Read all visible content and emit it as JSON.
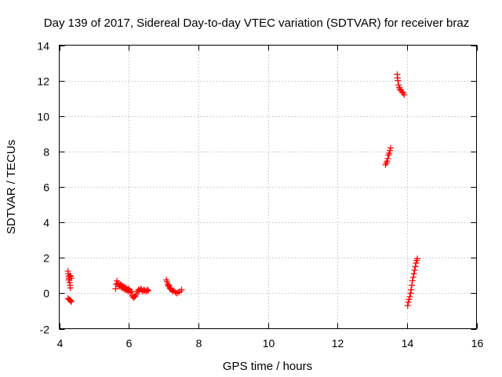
{
  "chart_data": {
    "type": "scatter",
    "title": "Day 139 of 2017, Sidereal Day-to-day VTEC variation (SDTVAR) for receiver braz",
    "xlabel": "GPS time / hours",
    "ylabel": "SDTVAR / TECUs",
    "xlim": [
      4,
      16
    ],
    "ylim": [
      -2,
      14
    ],
    "xticks": [
      4,
      6,
      8,
      10,
      12,
      14,
      16
    ],
    "yticks": [
      -2,
      0,
      2,
      4,
      6,
      8,
      10,
      12,
      14
    ],
    "xtick_labels": [
      "4",
      "6",
      "8",
      "10",
      "12",
      "14",
      "16"
    ],
    "ytick_labels": [
      "-2",
      "0",
      "2",
      "4",
      "6",
      "8",
      "10",
      "12",
      "14"
    ],
    "grid": true,
    "marker": "+",
    "color": "#ff0000",
    "series": [
      {
        "name": "SDTVAR",
        "points": [
          [
            4.25,
            1.25
          ],
          [
            4.26,
            1.1
          ],
          [
            4.27,
            0.95
          ],
          [
            4.28,
            0.85
          ],
          [
            4.29,
            0.75
          ],
          [
            4.3,
            0.6
          ],
          [
            4.31,
            0.45
          ],
          [
            4.32,
            0.3
          ],
          [
            4.27,
            0.75
          ],
          [
            4.29,
            0.95
          ],
          [
            4.31,
            1.0
          ],
          [
            4.33,
            0.95
          ],
          [
            4.35,
            0.85
          ],
          [
            4.25,
            -0.3
          ],
          [
            4.28,
            -0.35
          ],
          [
            4.31,
            -0.38
          ],
          [
            4.33,
            -0.42
          ],
          [
            4.35,
            -0.48
          ],
          [
            5.62,
            0.25
          ],
          [
            5.64,
            0.5
          ],
          [
            5.66,
            0.7
          ],
          [
            5.68,
            0.55
          ],
          [
            5.7,
            0.4
          ],
          [
            5.72,
            0.55
          ],
          [
            5.74,
            0.4
          ],
          [
            5.76,
            0.5
          ],
          [
            5.78,
            0.35
          ],
          [
            5.8,
            0.45
          ],
          [
            5.82,
            0.3
          ],
          [
            5.84,
            0.4
          ],
          [
            5.86,
            0.25
          ],
          [
            5.88,
            0.35
          ],
          [
            5.9,
            0.2
          ],
          [
            5.92,
            0.3
          ],
          [
            5.95,
            0.15
          ],
          [
            5.98,
            0.25
          ],
          [
            6.0,
            0.1
          ],
          [
            6.02,
            0.2
          ],
          [
            6.05,
            0.05
          ],
          [
            6.08,
            0.1
          ],
          [
            6.1,
            -0.15
          ],
          [
            6.13,
            -0.25
          ],
          [
            6.16,
            -0.2
          ],
          [
            6.19,
            -0.15
          ],
          [
            6.22,
            -0.05
          ],
          [
            6.25,
            0.1
          ],
          [
            6.28,
            0.2
          ],
          [
            6.31,
            0.15
          ],
          [
            6.34,
            0.25
          ],
          [
            6.37,
            0.2
          ],
          [
            6.4,
            0.1
          ],
          [
            6.43,
            0.2
          ],
          [
            6.46,
            0.15
          ],
          [
            6.5,
            0.1
          ],
          [
            6.53,
            0.2
          ],
          [
            6.56,
            0.15
          ],
          [
            7.08,
            0.75
          ],
          [
            7.1,
            0.65
          ],
          [
            7.12,
            0.5
          ],
          [
            7.14,
            0.4
          ],
          [
            7.16,
            0.45
          ],
          [
            7.18,
            0.3
          ],
          [
            7.2,
            0.25
          ],
          [
            7.23,
            0.2
          ],
          [
            7.26,
            0.1
          ],
          [
            7.3,
            0.15
          ],
          [
            7.34,
            0.05
          ],
          [
            7.38,
            0.0
          ],
          [
            7.42,
            0.05
          ],
          [
            7.47,
            0.1
          ],
          [
            7.52,
            0.2
          ],
          [
            13.38,
            7.25
          ],
          [
            13.41,
            7.35
          ],
          [
            13.43,
            7.45
          ],
          [
            13.45,
            7.6
          ],
          [
            13.47,
            7.8
          ],
          [
            13.49,
            7.9
          ],
          [
            13.51,
            8.05
          ],
          [
            13.53,
            8.2
          ],
          [
            13.72,
            12.35
          ],
          [
            13.73,
            12.15
          ],
          [
            13.74,
            12.0
          ],
          [
            13.76,
            11.75
          ],
          [
            13.78,
            11.6
          ],
          [
            13.8,
            11.5
          ],
          [
            13.83,
            11.45
          ],
          [
            13.86,
            11.35
          ],
          [
            13.89,
            11.3
          ],
          [
            13.92,
            11.2
          ],
          [
            14.02,
            -0.7
          ],
          [
            14.04,
            -0.5
          ],
          [
            14.06,
            -0.35
          ],
          [
            14.08,
            -0.2
          ],
          [
            14.1,
            0.0
          ],
          [
            14.12,
            0.2
          ],
          [
            14.14,
            0.45
          ],
          [
            14.16,
            0.7
          ],
          [
            14.18,
            0.9
          ],
          [
            14.2,
            1.1
          ],
          [
            14.22,
            1.3
          ],
          [
            14.24,
            1.5
          ],
          [
            14.26,
            1.7
          ],
          [
            14.28,
            1.85
          ],
          [
            14.3,
            1.95
          ]
        ]
      }
    ]
  }
}
